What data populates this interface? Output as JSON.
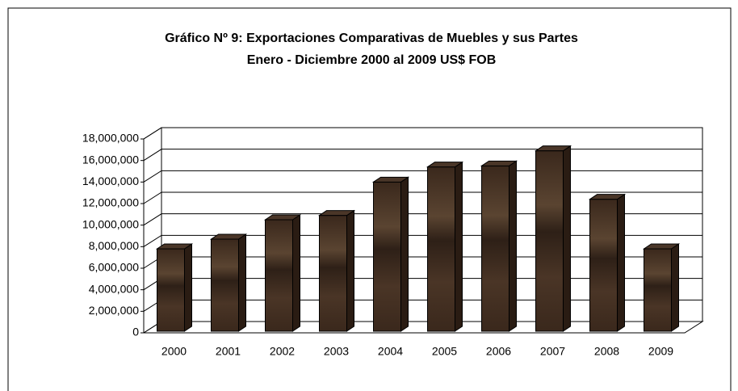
{
  "chart_data": {
    "type": "bar3d",
    "title": "Gráfico Nº 9: Exportaciones Comparativas de Muebles y sus Partes",
    "subtitle": "Enero - Diciembre 2000 al 2009 US$ FOB",
    "categories": [
      "2000",
      "2001",
      "2002",
      "2003",
      "2004",
      "2005",
      "2006",
      "2007",
      "2008",
      "2009"
    ],
    "values": [
      7800000,
      8700000,
      10500000,
      10900000,
      14000000,
      15400000,
      15500000,
      16900000,
      12400000,
      7800000
    ],
    "color": "#3b2a1e",
    "ylim": [
      0,
      18000000
    ],
    "yticks": [
      0,
      {
        "value": 2000000,
        "label": "2,000,000"
      },
      {
        "value": 4000000,
        "label": "4,000,000"
      },
      {
        "value": 6000000,
        "label": "6,000,000"
      },
      {
        "value": 8000000,
        "label": "8,000,000"
      },
      {
        "value": 10000000,
        "label": "10,000,000"
      },
      {
        "value": 12000000,
        "label": "12,000,000"
      },
      {
        "value": 14000000,
        "label": "14,000,000"
      },
      {
        "value": 16000000,
        "label": "16,000,000"
      },
      {
        "value": 18000000,
        "label": "18,000,000"
      }
    ],
    "grid": true
  }
}
